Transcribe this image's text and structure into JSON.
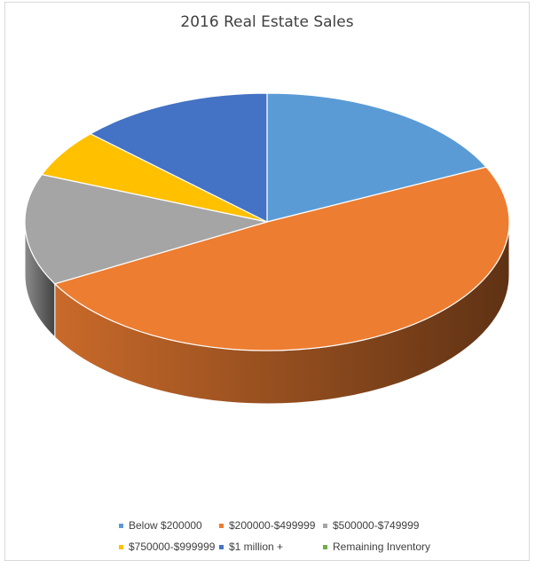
{
  "chart_data": {
    "type": "pie",
    "title": "2016 Real Estate Sales",
    "style": "3d",
    "categories": [
      "Below $200000",
      "$200000-$499999",
      "$500000-$749999",
      "$750000-$999999",
      "$1 million +",
      "Remaining Inventory"
    ],
    "values": [
      18,
      49,
      14,
      6,
      13,
      0
    ],
    "colors": [
      "#5b9bd5",
      "#ed7d31",
      "#a5a5a5",
      "#ffc000",
      "#4472c4",
      "#70ad47"
    ],
    "legend_position": "bottom"
  }
}
